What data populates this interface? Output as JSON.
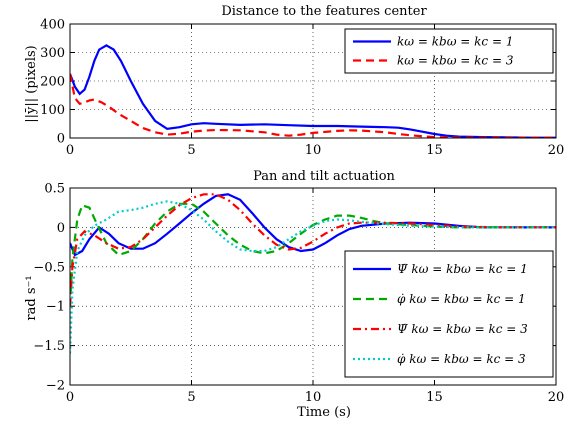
{
  "chart_data": [
    {
      "type": "line",
      "title": "Distance to the features center",
      "xlabel": "",
      "ylabel": "||ȳ|| (pixels)",
      "xlim": [
        0,
        20
      ],
      "ylim": [
        0,
        400
      ],
      "xticks": [
        "0",
        "5",
        "10",
        "15",
        "20"
      ],
      "yticks": [
        "0",
        "100",
        "200",
        "300",
        "400"
      ],
      "grid": true,
      "legend_position": "top-right",
      "series": [
        {
          "name": "kω = kbω = kc = 1",
          "color": "#0000ff",
          "dash": "solid",
          "x": [
            0,
            0.2,
            0.4,
            0.6,
            0.8,
            1.0,
            1.2,
            1.5,
            1.8,
            2.1,
            2.5,
            3.0,
            3.5,
            4.0,
            4.5,
            5.0,
            5.5,
            6.0,
            7.0,
            8.0,
            9.0,
            10.0,
            11.0,
            12.0,
            13.0,
            13.5,
            14.0,
            14.5,
            15.0,
            15.5,
            16.0,
            17.0,
            18.0,
            19.0,
            20.0
          ],
          "y": [
            225,
            180,
            155,
            170,
            215,
            270,
            310,
            325,
            310,
            270,
            200,
            120,
            60,
            32,
            38,
            48,
            52,
            50,
            46,
            48,
            45,
            42,
            42,
            40,
            38,
            36,
            30,
            22,
            14,
            8,
            5,
            3,
            2,
            1,
            1
          ]
        },
        {
          "name": "kω = kbω = kc = 3",
          "color": "#ff0000",
          "dash": "dashed",
          "x": [
            0,
            0.2,
            0.4,
            0.6,
            0.8,
            1.0,
            1.3,
            1.6,
            2.0,
            2.5,
            3.0,
            3.5,
            4.0,
            4.5,
            5.0,
            5.5,
            6.0,
            7.0,
            8.0,
            8.5,
            9.0,
            9.5,
            10.0,
            11.0,
            11.5,
            12.0,
            13.0,
            13.5,
            14.0,
            14.5,
            15.0,
            16.0,
            18.0,
            20.0
          ],
          "y": [
            225,
            140,
            120,
            125,
            132,
            135,
            125,
            110,
            85,
            60,
            35,
            20,
            12,
            15,
            22,
            26,
            28,
            27,
            20,
            12,
            8,
            12,
            18,
            25,
            27,
            26,
            20,
            14,
            10,
            6,
            3,
            1,
            1,
            1
          ]
        }
      ]
    },
    {
      "type": "line",
      "title": "Pan and tilt actuation",
      "xlabel": "Time (s)",
      "ylabel": "rad s⁻¹",
      "xlim": [
        0,
        20
      ],
      "ylim": [
        -2,
        0.5
      ],
      "xticks": [
        "0",
        "5",
        "10",
        "15",
        "20"
      ],
      "yticks": [
        "−2",
        "−1.5",
        "−1",
        "−0.5",
        "0",
        "0.5"
      ],
      "grid": true,
      "legend_position": "bottom-right",
      "series": [
        {
          "name": "Ψ̇ kω = kbω = kc = 1",
          "color": "#0000ff",
          "dash": "solid",
          "x": [
            0,
            0.2,
            0.5,
            0.8,
            1.2,
            1.6,
            2.0,
            2.5,
            3.0,
            3.5,
            4.0,
            4.5,
            5.0,
            5.5,
            6.0,
            6.5,
            7.0,
            7.5,
            8.0,
            8.5,
            9.0,
            9.5,
            10.0,
            10.5,
            11.0,
            11.5,
            12.0,
            13.0,
            14.0,
            15.0,
            16.0,
            17.0,
            18.0,
            20.0
          ],
          "y": [
            -0.2,
            -0.35,
            -0.3,
            -0.15,
            0.0,
            -0.08,
            -0.2,
            -0.27,
            -0.27,
            -0.2,
            -0.08,
            0.05,
            0.18,
            0.3,
            0.4,
            0.42,
            0.35,
            0.18,
            0.0,
            -0.15,
            -0.25,
            -0.3,
            -0.28,
            -0.2,
            -0.1,
            -0.02,
            0.02,
            0.05,
            0.06,
            0.05,
            0.02,
            0.0,
            0.0,
            0.0
          ]
        },
        {
          "name": "φ̇ kω = kbω = kc = 1",
          "color": "#00aa00",
          "dash": "dashed",
          "x": [
            0,
            0.1,
            0.3,
            0.5,
            0.8,
            1.1,
            1.5,
            2.0,
            2.5,
            3.0,
            3.5,
            4.0,
            4.5,
            5.0,
            5.5,
            6.0,
            6.5,
            7.0,
            7.5,
            8.0,
            8.5,
            9.0,
            9.5,
            10.0,
            10.5,
            11.0,
            11.5,
            12.0,
            12.5,
            13.0,
            14.0,
            15.0,
            16.0,
            18.0,
            20.0
          ],
          "y": [
            -1.0,
            -0.4,
            0.1,
            0.28,
            0.25,
            0.05,
            -0.2,
            -0.35,
            -0.3,
            -0.15,
            0.05,
            0.2,
            0.3,
            0.3,
            0.2,
            0.05,
            -0.1,
            -0.22,
            -0.3,
            -0.33,
            -0.3,
            -0.2,
            -0.08,
            0.03,
            0.1,
            0.15,
            0.15,
            0.12,
            0.08,
            0.05,
            0.03,
            0.01,
            0.0,
            0.0,
            0.0
          ]
        },
        {
          "name": "Ψ̇ kω = kbω = kc = 3",
          "color": "#ff0000",
          "dash": "dashdot",
          "x": [
            0,
            0.1,
            0.3,
            0.6,
            1.0,
            1.5,
            2.0,
            2.5,
            3.0,
            3.5,
            4.0,
            4.5,
            5.0,
            5.5,
            6.0,
            6.5,
            7.0,
            7.5,
            8.0,
            8.5,
            9.0,
            9.5,
            10.0,
            10.5,
            11.0,
            11.5,
            12.0,
            13.0,
            14.0,
            15.0,
            16.0,
            18.0,
            20.0
          ],
          "y": [
            -1.0,
            -0.5,
            -0.15,
            -0.05,
            -0.1,
            -0.2,
            -0.27,
            -0.25,
            -0.15,
            0.0,
            0.15,
            0.28,
            0.37,
            0.42,
            0.42,
            0.35,
            0.22,
            0.05,
            -0.1,
            -0.22,
            -0.28,
            -0.26,
            -0.18,
            -0.08,
            0.0,
            0.05,
            0.06,
            0.06,
            0.05,
            0.03,
            0.01,
            0.0,
            0.0
          ]
        },
        {
          "name": "φ̇ kω = kbω = kc = 3",
          "color": "#00cccc",
          "dash": "dotted",
          "x": [
            0,
            0.1,
            0.3,
            0.6,
            1.0,
            1.5,
            2.0,
            2.5,
            3.0,
            3.5,
            4.0,
            4.5,
            5.0,
            5.5,
            6.0,
            6.5,
            7.0,
            7.5,
            8.0,
            8.5,
            9.0,
            9.5,
            10.0,
            10.5,
            11.0,
            11.5,
            12.0,
            13.0,
            14.0,
            15.0,
            16.0,
            18.0,
            20.0
          ],
          "y": [
            -1.6,
            -0.8,
            -0.3,
            -0.1,
            0.02,
            0.1,
            0.2,
            0.22,
            0.25,
            0.3,
            0.33,
            0.3,
            0.22,
            0.1,
            -0.05,
            -0.18,
            -0.28,
            -0.3,
            -0.3,
            -0.25,
            -0.15,
            -0.05,
            0.02,
            0.08,
            0.1,
            0.09,
            0.07,
            0.04,
            0.02,
            0.01,
            0.0,
            0.0,
            0.0
          ]
        }
      ]
    }
  ]
}
